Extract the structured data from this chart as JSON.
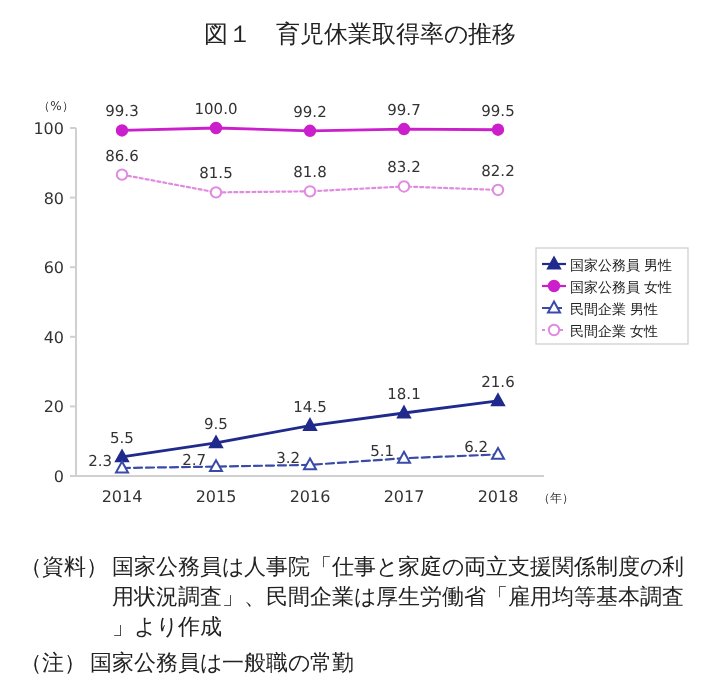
{
  "chart_data": {
    "type": "line",
    "title": "図１　育児休業取得率の推移",
    "ylabel": "（%）",
    "xlabel": "（年）",
    "categories": [
      "2014",
      "2015",
      "2016",
      "2017",
      "2018"
    ],
    "series": [
      {
        "name": "国家公務員 男性",
        "color": "#1f2a8c",
        "values": [
          5.5,
          9.5,
          14.5,
          18.1,
          21.6
        ],
        "value_labels": [
          "5.5",
          "9.5",
          "14.5",
          "18.1",
          "21.6"
        ],
        "marker": "triangle",
        "line_style": "solid"
      },
      {
        "name": "国家公務員 女性",
        "color": "#cc1fcc",
        "values": [
          99.3,
          100,
          99.2,
          99.7,
          99.5
        ],
        "value_labels": [
          "99.3",
          "100.0",
          "99.2",
          "99.7",
          "99.5"
        ],
        "marker": "circle",
        "line_style": "solid"
      },
      {
        "name": "民間企業 男性",
        "color": "#3a4aa8",
        "values": [
          2.3,
          2.7,
          3.2,
          5.1,
          6.2
        ],
        "value_labels": [
          "2.3",
          "2.7",
          "3.2",
          "5.1",
          "6.2"
        ],
        "marker": "triangle",
        "line_style": "dashed"
      },
      {
        "name": "民間企業 女性",
        "color": "#e08ae0",
        "values": [
          86.6,
          81.5,
          81.8,
          83.2,
          82.2
        ],
        "value_labels": [
          "86.6",
          "81.5",
          "81.8",
          "83.2",
          "82.2"
        ],
        "marker": "circle",
        "line_style": "dotted"
      }
    ],
    "ylim": [
      0,
      100
    ],
    "yticks": [
      0,
      20,
      40,
      60,
      80,
      100
    ],
    "grid": false,
    "legend": "right",
    "annotations": [
      "（資料）国家公務員は人事院「仕事と家庭の両立支援関係制度の利用状況調査」、民間企業は厚生労働省「雇用均等基本調査」より作成",
      "（注）国家公務員は一般職の常勤"
    ]
  }
}
